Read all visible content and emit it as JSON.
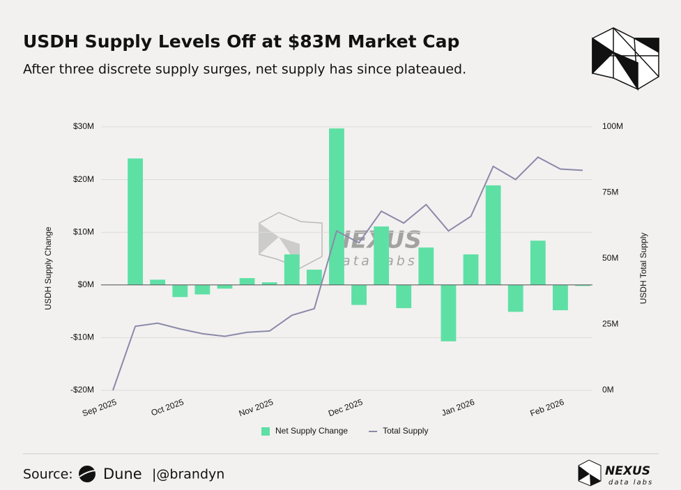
{
  "chart_data": {
    "type": "bar",
    "title": "USDH Supply Levels Off at $83M Market Cap",
    "subtitle": "After three discrete supply surges, net supply has since plateaued.",
    "y_label": "USDH Supply Change",
    "y2_label": "USDH Total Supply",
    "categories": [
      "Sep 2025",
      null,
      null,
      "Oct 2025",
      null,
      null,
      null,
      "Nov 2025",
      null,
      null,
      null,
      "Dec 2025",
      null,
      null,
      null,
      null,
      "Jan 2026",
      null,
      null,
      null,
      "Feb 2026",
      null
    ],
    "series": [
      {
        "name": "Net Supply Change",
        "color": "#5ee0a5",
        "type": "bar",
        "values": [
          null,
          24,
          1,
          -2.3,
          -1.8,
          -0.7,
          1.3,
          0.5,
          5.8,
          2.9,
          29.7,
          -3.8,
          11.1,
          -4.4,
          7.1,
          -10.7,
          5.8,
          18.9,
          -5.1,
          8.4,
          -4.8,
          -0.2
        ]
      },
      {
        "name": "Total Supply",
        "color": "#8b89a8",
        "type": "line",
        "axis": "y2",
        "values": [
          0,
          24.3,
          25.5,
          23.3,
          21.5,
          20.5,
          22,
          22.5,
          28.5,
          31,
          60.5,
          56,
          68,
          63.5,
          70.5,
          60.5,
          66,
          85,
          80,
          88.5,
          84,
          83.5
        ]
      }
    ],
    "ylim": [
      -20,
      30
    ],
    "yticks": [
      {
        "value": -20,
        "label": "-$20M"
      },
      {
        "value": -10,
        "label": "-$10M"
      },
      {
        "value": 0,
        "label": "$0M"
      },
      {
        "value": 10,
        "label": "$10M"
      },
      {
        "value": 20,
        "label": "$20M"
      },
      {
        "value": 30,
        "label": "$30M"
      }
    ],
    "y2lim": [
      0,
      100
    ],
    "y2ticks": [
      {
        "value": 0,
        "label": "0M"
      },
      {
        "value": 25,
        "label": "25M"
      },
      {
        "value": 50,
        "label": "50M"
      },
      {
        "value": 75,
        "label": "75M"
      },
      {
        "value": 100,
        "label": "100M"
      }
    ],
    "grid": true,
    "legend": "bottom"
  },
  "watermark": {
    "name": "NEXUS",
    "tagline": "data labs"
  },
  "footer": {
    "source": "Source:",
    "platform": "Dune",
    "handle": "|@brandyn",
    "brand": "NEXUS",
    "brand_tagline": "data labs"
  }
}
